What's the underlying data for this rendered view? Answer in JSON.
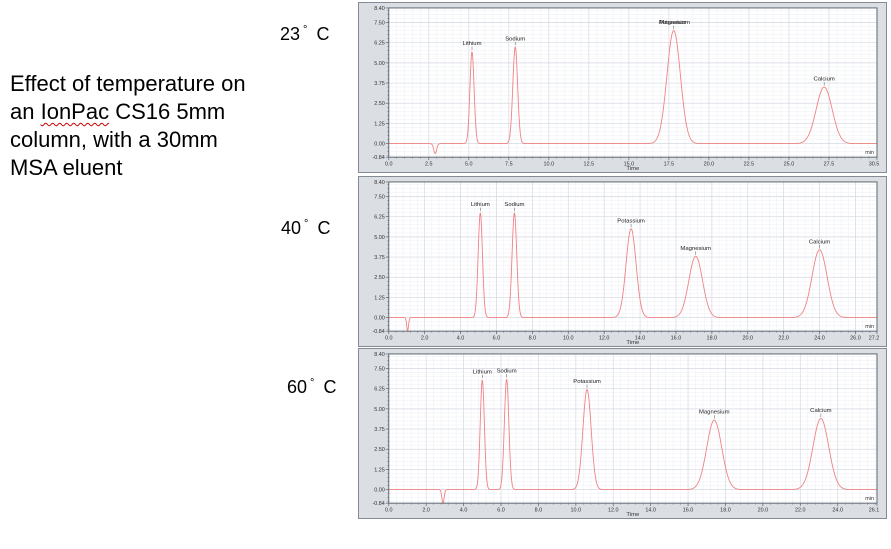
{
  "slide": {
    "caption": {
      "line1": "Effect of temperature on",
      "line2_pre": "an ",
      "line2_word_underlined": "IonPac",
      "line2_post": " CS16 5mm",
      "line3": "column, with a 30mm",
      "line4": "MSA eluent"
    },
    "misspelling_underline_color": "#cc0000"
  },
  "temperature_labels": [
    {
      "value": "23",
      "degree_symbol": "°",
      "unit": "C"
    },
    {
      "value": "40",
      "degree_symbol": "°",
      "unit": "C"
    },
    {
      "value": "60",
      "degree_symbol": "°",
      "unit": "C"
    }
  ],
  "colors": {
    "trace": "#ef8282",
    "panel_bg": "#dbdee3",
    "plot_bg": "#ffffff",
    "grid_major": "#d6dae3",
    "grid_minor": "#edeff4",
    "axis": "#5f6670",
    "tick_text": "#333333",
    "peak_label_text": "#222222",
    "leader_line": "#555555"
  },
  "chart_data": [
    {
      "type": "line",
      "temperature": "23 ° C",
      "xlabel": "Time",
      "x_unit": "min",
      "xlim": [
        0,
        30.5
      ],
      "ylim": [
        -0.84,
        8.4
      ],
      "x_ticks": [
        0,
        2.5,
        5,
        7.5,
        10,
        12.5,
        15,
        17.5,
        20,
        22.5,
        25,
        27.5,
        30.5
      ],
      "x_tick_labels": [
        "0.0",
        "2.5",
        "5.0",
        "7.5",
        "10.0",
        "12.5",
        "15.0",
        "17.5",
        "20.0",
        "22.5",
        "25.0",
        "27.5",
        "30.5"
      ],
      "x_minor_step": 0.5,
      "y_ticks": [
        8.4,
        7.5,
        6.25,
        5.0,
        3.75,
        2.5,
        1.25,
        0.0,
        -0.84
      ],
      "y_tick_labels": [
        "8.40",
        "7.50",
        "6.25",
        "5.00",
        "3.75",
        "2.50",
        "1.25",
        "0.00",
        "-0.84"
      ],
      "y_minor_step": 0.25,
      "injection_dip": {
        "time": 2.9,
        "depth": 0.62,
        "sigma": 0.09
      },
      "peaks": [
        {
          "label": "Lithium",
          "time": 5.2,
          "height": 5.7,
          "sigma": 0.13
        },
        {
          "label": "Sodium",
          "time": 7.9,
          "height": 6.0,
          "sigma": 0.15
        },
        {
          "label": "Potassium",
          "time": 17.8,
          "height": 7.0,
          "sigma": 0.42,
          "label_dx": -1
        },
        {
          "label": "Magnesium",
          "time": 17.8,
          "height": 7.0,
          "sigma": 0.42,
          "label_dx": 1,
          "draw_curve": false
        },
        {
          "label": "Calcium",
          "time": 27.2,
          "height": 3.5,
          "sigma": 0.5
        }
      ]
    },
    {
      "type": "line",
      "temperature": "40 ° C",
      "xlabel": "Time",
      "x_unit": "min",
      "xlim": [
        0,
        27.2
      ],
      "ylim": [
        -0.84,
        8.4
      ],
      "x_ticks": [
        0,
        2,
        4,
        6,
        8,
        10,
        12,
        14,
        16,
        18,
        20,
        22,
        24,
        26,
        27.2
      ],
      "x_tick_labels": [
        "0.0",
        "2.0",
        "4.0",
        "6.0",
        "8.0",
        "10.0",
        "12.0",
        "14.0",
        "16.0",
        "18.0",
        "20.0",
        "22.0",
        "24.0",
        "26.0",
        "27.2"
      ],
      "x_minor_step": 0.4,
      "y_ticks": [
        8.4,
        7.5,
        6.25,
        5.0,
        3.75,
        2.5,
        1.25,
        0.0,
        -0.84
      ],
      "y_tick_labels": [
        "8.40",
        "7.50",
        "6.25",
        "5.00",
        "3.75",
        "2.50",
        "1.25",
        "0.00",
        "-0.84"
      ],
      "y_minor_step": 0.25,
      "injection_dip": {
        "time": 1.05,
        "depth": 0.84,
        "sigma": 0.05
      },
      "peaks": [
        {
          "label": "Lithium",
          "time": 5.1,
          "height": 6.5,
          "sigma": 0.12
        },
        {
          "label": "Sodium",
          "time": 7.0,
          "height": 6.5,
          "sigma": 0.13
        },
        {
          "label": "Potassium",
          "time": 13.5,
          "height": 5.5,
          "sigma": 0.28
        },
        {
          "label": "Magnesium",
          "time": 17.1,
          "height": 3.8,
          "sigma": 0.38
        },
        {
          "label": "Calcium",
          "time": 24.0,
          "height": 4.2,
          "sigma": 0.42
        }
      ]
    },
    {
      "type": "line",
      "temperature": "60 ° C",
      "xlabel": "Time",
      "x_unit": "min",
      "xlim": [
        0,
        26.1
      ],
      "ylim": [
        -0.84,
        8.4
      ],
      "x_ticks": [
        0,
        2,
        4,
        6,
        8,
        10,
        12,
        14,
        16,
        18,
        20,
        22,
        24,
        26.1
      ],
      "x_tick_labels": [
        "0.0",
        "2.0",
        "4.0",
        "6.0",
        "8.0",
        "10.0",
        "12.0",
        "14.0",
        "16.0",
        "18.0",
        "20.0",
        "22.0",
        "24.0",
        "26.1"
      ],
      "x_minor_step": 0.4,
      "y_ticks": [
        8.4,
        7.5,
        6.25,
        5.0,
        3.75,
        2.5,
        1.25,
        0.0,
        -0.84
      ],
      "y_tick_labels": [
        "8.40",
        "7.50",
        "6.25",
        "5.00",
        "3.75",
        "2.50",
        "1.25",
        "0.00",
        "-0.84"
      ],
      "y_minor_step": 0.25,
      "injection_dip": {
        "time": 2.9,
        "depth": 0.84,
        "sigma": 0.06
      },
      "peaks": [
        {
          "label": "Lithium",
          "time": 5.0,
          "height": 6.8,
          "sigma": 0.11
        },
        {
          "label": "Sodium",
          "time": 6.3,
          "height": 6.85,
          "sigma": 0.12
        },
        {
          "label": "Potassium",
          "time": 10.6,
          "height": 6.2,
          "sigma": 0.22
        },
        {
          "label": "Magnesium",
          "time": 17.4,
          "height": 4.3,
          "sigma": 0.4
        },
        {
          "label": "Calcium",
          "time": 23.1,
          "height": 4.4,
          "sigma": 0.42
        }
      ]
    }
  ]
}
